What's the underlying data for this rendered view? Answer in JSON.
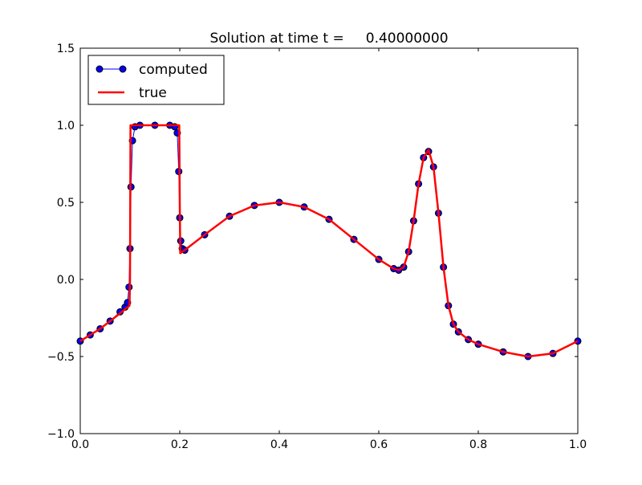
{
  "chart_data": {
    "type": "line",
    "title": "Solution at time t =     0.40000000",
    "xlabel": "",
    "ylabel": "",
    "xlim": [
      0.0,
      1.0
    ],
    "ylim": [
      -1.0,
      1.5
    ],
    "x_ticks": [
      "0.0",
      "0.2",
      "0.4",
      "0.6",
      "0.8",
      "1.0"
    ],
    "y_ticks": [
      "−1.0",
      "−0.5",
      "0.0",
      "0.5",
      "1.0",
      "1.5"
    ],
    "grid": false,
    "legend_position": "top-left",
    "series": [
      {
        "name": "computed",
        "style": "line-with-circle-markers",
        "color": "#0000ff",
        "marker_edge_color": "#000000",
        "x": [
          0.0,
          0.02,
          0.04,
          0.06,
          0.08,
          0.09,
          0.095,
          0.098,
          0.1,
          0.102,
          0.105,
          0.11,
          0.12,
          0.15,
          0.18,
          0.19,
          0.195,
          0.198,
          0.2,
          0.202,
          0.205,
          0.21,
          0.25,
          0.3,
          0.35,
          0.4,
          0.45,
          0.5,
          0.55,
          0.6,
          0.63,
          0.64,
          0.65,
          0.66,
          0.67,
          0.68,
          0.69,
          0.7,
          0.71,
          0.72,
          0.73,
          0.74,
          0.75,
          0.76,
          0.78,
          0.8,
          0.85,
          0.9,
          0.95,
          1.0
        ],
        "y": [
          -0.4,
          -0.36,
          -0.32,
          -0.27,
          -0.21,
          -0.18,
          -0.15,
          -0.05,
          0.2,
          0.6,
          0.9,
          0.99,
          1.0,
          1.0,
          1.0,
          0.99,
          0.95,
          0.7,
          0.4,
          0.25,
          0.2,
          0.19,
          0.29,
          0.41,
          0.48,
          0.5,
          0.47,
          0.39,
          0.26,
          0.13,
          0.07,
          0.06,
          0.08,
          0.18,
          0.38,
          0.62,
          0.79,
          0.83,
          0.73,
          0.43,
          0.08,
          -0.17,
          -0.29,
          -0.34,
          -0.39,
          -0.42,
          -0.47,
          -0.5,
          -0.48,
          -0.4
        ]
      },
      {
        "name": "true",
        "style": "line",
        "color": "#ff0000",
        "x": [
          0.0,
          0.02,
          0.04,
          0.06,
          0.08,
          0.099,
          0.1,
          0.101,
          0.12,
          0.15,
          0.18,
          0.199,
          0.2,
          0.201,
          0.21,
          0.25,
          0.3,
          0.35,
          0.4,
          0.45,
          0.5,
          0.55,
          0.6,
          0.63,
          0.64,
          0.65,
          0.66,
          0.67,
          0.68,
          0.69,
          0.7,
          0.71,
          0.72,
          0.73,
          0.74,
          0.75,
          0.76,
          0.78,
          0.8,
          0.85,
          0.9,
          0.95,
          1.0
        ],
        "y": [
          -0.4,
          -0.36,
          -0.32,
          -0.27,
          -0.22,
          -0.17,
          0.0,
          1.0,
          1.0,
          1.0,
          1.0,
          1.0,
          0.5,
          0.17,
          0.19,
          0.29,
          0.41,
          0.48,
          0.5,
          0.47,
          0.39,
          0.26,
          0.13,
          0.07,
          0.06,
          0.08,
          0.18,
          0.38,
          0.62,
          0.79,
          0.84,
          0.73,
          0.43,
          0.08,
          -0.17,
          -0.29,
          -0.34,
          -0.39,
          -0.42,
          -0.47,
          -0.5,
          -0.48,
          -0.4
        ]
      }
    ]
  }
}
